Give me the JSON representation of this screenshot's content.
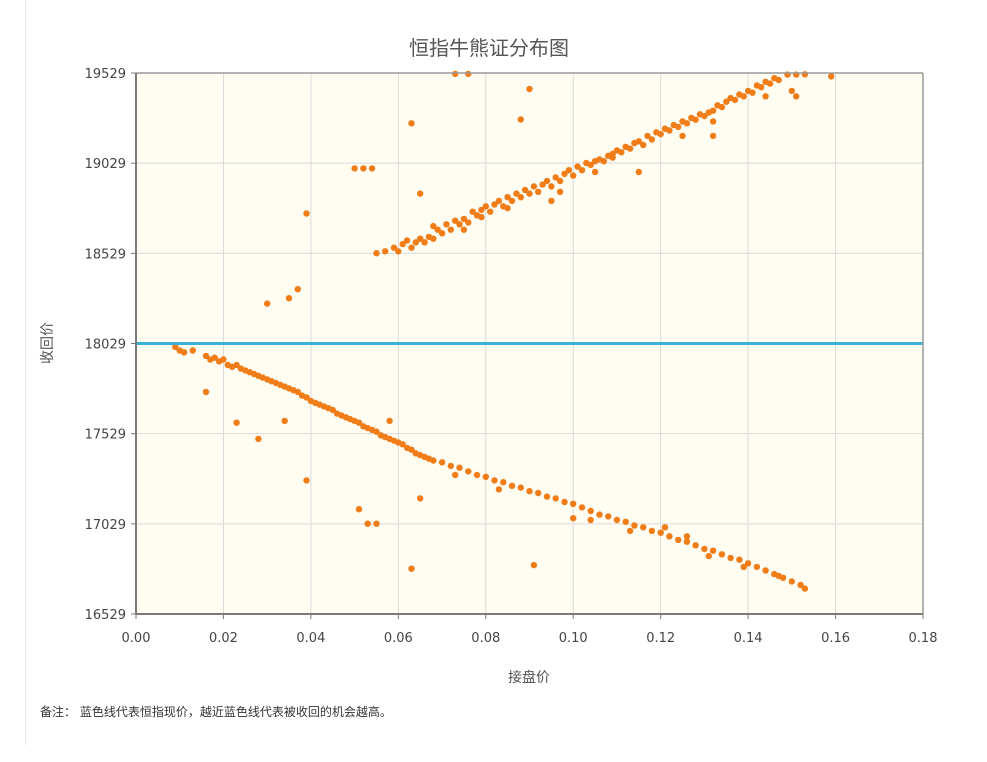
{
  "chart_data": {
    "type": "scatter",
    "title": "恒指牛熊证分布图",
    "xlabel": "接盘价",
    "ylabel": "收回价",
    "xlim": [
      0,
      0.18
    ],
    "ylim": [
      16529,
      19529
    ],
    "x_ticks": [
      "0.00",
      "0.02",
      "0.04",
      "0.06",
      "0.08",
      "0.10",
      "0.12",
      "0.14",
      "0.16",
      "0.18"
    ],
    "y_ticks": [
      "19529",
      "19029",
      "18529",
      "18029",
      "17529",
      "17029",
      "16529"
    ],
    "grid": true,
    "reference_line": {
      "y": 18029,
      "color": "#3ab0d4"
    },
    "point_color": "#f07d18",
    "plot_background": "#fffcf2",
    "series": [
      {
        "points": [
          [
            0.073,
            19524
          ],
          [
            0.076,
            19524
          ],
          [
            0.09,
            19440
          ],
          [
            0.063,
            19250
          ],
          [
            0.088,
            19271
          ],
          [
            0.05,
            19000
          ],
          [
            0.052,
            19000
          ],
          [
            0.054,
            19000
          ],
          [
            0.065,
            18860
          ],
          [
            0.039,
            18750
          ],
          [
            0.055,
            18530
          ],
          [
            0.057,
            18540
          ],
          [
            0.059,
            18560
          ],
          [
            0.06,
            18540
          ],
          [
            0.061,
            18580
          ],
          [
            0.062,
            18600
          ],
          [
            0.063,
            18560
          ],
          [
            0.064,
            18590
          ],
          [
            0.065,
            18610
          ],
          [
            0.066,
            18590
          ],
          [
            0.067,
            18620
          ],
          [
            0.068,
            18610
          ],
          [
            0.069,
            18660
          ],
          [
            0.07,
            18640
          ],
          [
            0.071,
            18690
          ],
          [
            0.072,
            18660
          ],
          [
            0.073,
            18710
          ],
          [
            0.074,
            18690
          ],
          [
            0.075,
            18720
          ],
          [
            0.076,
            18700
          ],
          [
            0.077,
            18760
          ],
          [
            0.078,
            18740
          ],
          [
            0.079,
            18770
          ],
          [
            0.08,
            18790
          ],
          [
            0.081,
            18760
          ],
          [
            0.082,
            18800
          ],
          [
            0.083,
            18820
          ],
          [
            0.084,
            18790
          ],
          [
            0.085,
            18840
          ],
          [
            0.086,
            18820
          ],
          [
            0.087,
            18860
          ],
          [
            0.088,
            18840
          ],
          [
            0.089,
            18880
          ],
          [
            0.09,
            18860
          ],
          [
            0.091,
            18900
          ],
          [
            0.092,
            18870
          ],
          [
            0.093,
            18910
          ],
          [
            0.094,
            18930
          ],
          [
            0.095,
            18900
          ],
          [
            0.096,
            18950
          ],
          [
            0.097,
            18930
          ],
          [
            0.098,
            18970
          ],
          [
            0.099,
            18990
          ],
          [
            0.1,
            18960
          ],
          [
            0.101,
            19010
          ],
          [
            0.102,
            18990
          ],
          [
            0.103,
            19030
          ],
          [
            0.104,
            19020
          ],
          [
            0.105,
            19040
          ],
          [
            0.106,
            19050
          ],
          [
            0.107,
            19040
          ],
          [
            0.108,
            19070
          ],
          [
            0.109,
            19060
          ],
          [
            0.11,
            19100
          ],
          [
            0.111,
            19090
          ],
          [
            0.112,
            19120
          ],
          [
            0.113,
            19110
          ],
          [
            0.114,
            19140
          ],
          [
            0.115,
            19150
          ],
          [
            0.116,
            19130
          ],
          [
            0.117,
            19180
          ],
          [
            0.118,
            19160
          ],
          [
            0.119,
            19200
          ],
          [
            0.12,
            19190
          ],
          [
            0.121,
            19220
          ],
          [
            0.122,
            19210
          ],
          [
            0.123,
            19240
          ],
          [
            0.124,
            19230
          ],
          [
            0.125,
            19260
          ],
          [
            0.126,
            19250
          ],
          [
            0.127,
            19280
          ],
          [
            0.128,
            19270
          ],
          [
            0.129,
            19300
          ],
          [
            0.13,
            19290
          ],
          [
            0.131,
            19310
          ],
          [
            0.132,
            19320
          ],
          [
            0.133,
            19350
          ],
          [
            0.134,
            19340
          ],
          [
            0.135,
            19370
          ],
          [
            0.136,
            19390
          ],
          [
            0.137,
            19380
          ],
          [
            0.138,
            19410
          ],
          [
            0.139,
            19400
          ],
          [
            0.14,
            19430
          ],
          [
            0.141,
            19420
          ],
          [
            0.142,
            19460
          ],
          [
            0.143,
            19450
          ],
          [
            0.144,
            19480
          ],
          [
            0.145,
            19470
          ],
          [
            0.146,
            19500
          ],
          [
            0.147,
            19490
          ],
          [
            0.149,
            19520
          ],
          [
            0.151,
            19520
          ],
          [
            0.153,
            19522
          ],
          [
            0.159,
            19510
          ],
          [
            0.068,
            18680
          ],
          [
            0.075,
            18660
          ],
          [
            0.085,
            18780
          ],
          [
            0.095,
            18820
          ],
          [
            0.105,
            18980
          ],
          [
            0.115,
            18980
          ],
          [
            0.125,
            19180
          ],
          [
            0.132,
            19180
          ],
          [
            0.144,
            19400
          ],
          [
            0.15,
            19430
          ],
          [
            0.151,
            19400
          ],
          [
            0.097,
            18870
          ],
          [
            0.079,
            18730
          ],
          [
            0.109,
            19080
          ],
          [
            0.132,
            19260
          ],
          [
            0.03,
            18250
          ],
          [
            0.035,
            18280
          ],
          [
            0.037,
            18330
          ],
          [
            0.009,
            18010
          ],
          [
            0.01,
            17990
          ],
          [
            0.011,
            17980
          ],
          [
            0.013,
            17990
          ],
          [
            0.016,
            17960
          ],
          [
            0.017,
            17940
          ],
          [
            0.018,
            17950
          ],
          [
            0.019,
            17930
          ],
          [
            0.02,
            17940
          ],
          [
            0.021,
            17910
          ],
          [
            0.022,
            17900
          ],
          [
            0.023,
            17910
          ],
          [
            0.024,
            17890
          ],
          [
            0.025,
            17880
          ],
          [
            0.026,
            17870
          ],
          [
            0.027,
            17860
          ],
          [
            0.028,
            17850
          ],
          [
            0.029,
            17840
          ],
          [
            0.03,
            17830
          ],
          [
            0.031,
            17820
          ],
          [
            0.032,
            17810
          ],
          [
            0.033,
            17800
          ],
          [
            0.034,
            17790
          ],
          [
            0.035,
            17780
          ],
          [
            0.036,
            17770
          ],
          [
            0.037,
            17760
          ],
          [
            0.038,
            17740
          ],
          [
            0.039,
            17730
          ],
          [
            0.04,
            17710
          ],
          [
            0.041,
            17700
          ],
          [
            0.042,
            17690
          ],
          [
            0.043,
            17680
          ],
          [
            0.044,
            17670
          ],
          [
            0.045,
            17660
          ],
          [
            0.046,
            17640
          ],
          [
            0.047,
            17630
          ],
          [
            0.048,
            17620
          ],
          [
            0.049,
            17610
          ],
          [
            0.05,
            17600
          ],
          [
            0.051,
            17590
          ],
          [
            0.052,
            17570
          ],
          [
            0.053,
            17560
          ],
          [
            0.054,
            17550
          ],
          [
            0.055,
            17540
          ],
          [
            0.056,
            17520
          ],
          [
            0.057,
            17510
          ],
          [
            0.058,
            17500
          ],
          [
            0.059,
            17490
          ],
          [
            0.06,
            17480
          ],
          [
            0.061,
            17470
          ],
          [
            0.062,
            17450
          ],
          [
            0.063,
            17440
          ],
          [
            0.064,
            17420
          ],
          [
            0.065,
            17410
          ],
          [
            0.066,
            17400
          ],
          [
            0.067,
            17390
          ],
          [
            0.068,
            17380
          ],
          [
            0.07,
            17370
          ],
          [
            0.072,
            17350
          ],
          [
            0.074,
            17340
          ],
          [
            0.076,
            17320
          ],
          [
            0.078,
            17300
          ],
          [
            0.08,
            17290
          ],
          [
            0.082,
            17270
          ],
          [
            0.084,
            17260
          ],
          [
            0.086,
            17240
          ],
          [
            0.088,
            17230
          ],
          [
            0.09,
            17210
          ],
          [
            0.092,
            17200
          ],
          [
            0.094,
            17180
          ],
          [
            0.096,
            17170
          ],
          [
            0.098,
            17150
          ],
          [
            0.1,
            17140
          ],
          [
            0.102,
            17120
          ],
          [
            0.104,
            17100
          ],
          [
            0.106,
            17080
          ],
          [
            0.108,
            17070
          ],
          [
            0.11,
            17050
          ],
          [
            0.112,
            17040
          ],
          [
            0.114,
            17020
          ],
          [
            0.116,
            17010
          ],
          [
            0.118,
            16990
          ],
          [
            0.12,
            16980
          ],
          [
            0.122,
            16960
          ],
          [
            0.124,
            16940
          ],
          [
            0.126,
            16930
          ],
          [
            0.128,
            16910
          ],
          [
            0.13,
            16890
          ],
          [
            0.132,
            16880
          ],
          [
            0.134,
            16860
          ],
          [
            0.136,
            16840
          ],
          [
            0.138,
            16830
          ],
          [
            0.14,
            16810
          ],
          [
            0.142,
            16790
          ],
          [
            0.144,
            16770
          ],
          [
            0.146,
            16750
          ],
          [
            0.148,
            16730
          ],
          [
            0.15,
            16710
          ],
          [
            0.152,
            16690
          ],
          [
            0.153,
            16670
          ],
          [
            0.016,
            17760
          ],
          [
            0.023,
            17590
          ],
          [
            0.028,
            17500
          ],
          [
            0.034,
            17600
          ],
          [
            0.039,
            17270
          ],
          [
            0.051,
            17110
          ],
          [
            0.053,
            17030
          ],
          [
            0.055,
            17030
          ],
          [
            0.063,
            16780
          ],
          [
            0.065,
            17170
          ],
          [
            0.091,
            16800
          ],
          [
            0.104,
            17050
          ],
          [
            0.121,
            17010
          ],
          [
            0.126,
            16960
          ],
          [
            0.139,
            16790
          ],
          [
            0.058,
            17600
          ],
          [
            0.073,
            17300
          ],
          [
            0.083,
            17220
          ],
          [
            0.1,
            17060
          ],
          [
            0.113,
            16990
          ],
          [
            0.131,
            16850
          ],
          [
            0.147,
            16740
          ]
        ]
      }
    ]
  },
  "note": "备注：  蓝色线代表恒指现价，越近蓝色线代表被收回的机会越高。"
}
